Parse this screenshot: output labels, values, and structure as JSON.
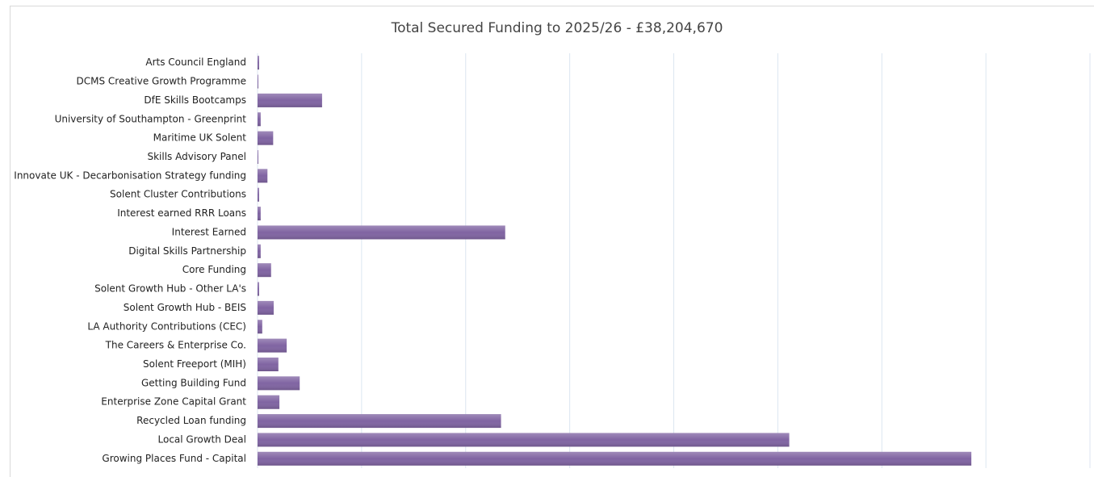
{
  "chart_data": {
    "type": "hbar",
    "title": "Total Secured Funding to 2025/26 - £38,204,670",
    "categories": [
      "Arts Council England",
      "DCMS Creative Growth Programme",
      "DfE Skills Bootcamps",
      "University of Southampton - Greenprint",
      "Maritime UK Solent",
      "Skills Advisory Panel",
      "Innovate UK - Decarbonisation Strategy funding",
      "Solent Cluster Contributions",
      "Interest earned RRR Loans",
      "Interest Earned",
      "Digital Skills Partnership",
      "Core Funding",
      "Solent Growth Hub - Other LA's",
      "Solent Growth Hub - BEIS",
      "LA Authority Contributions (CEC)",
      "The Careers & Enterprise Co.",
      "Solent Freeport (MIH)",
      "Getting Building Fund",
      "Enterprise Zone Capital Grant",
      "Recycled Loan funding",
      "Local Growth Deal",
      "Growing Places Fund - Capital"
    ],
    "values": [
      30000,
      15000,
      1240000,
      60000,
      300000,
      15000,
      190000,
      30000,
      60000,
      4760000,
      60000,
      260000,
      30000,
      310000,
      90000,
      560000,
      400000,
      810000,
      420000,
      4680000,
      10220000,
      13720000
    ],
    "color": "#8064a2",
    "xlim": [
      0,
      16000000
    ],
    "xticks": [
      0,
      2000000,
      4000000,
      6000000,
      8000000,
      10000000,
      12000000,
      14000000,
      16000000
    ],
    "grid": true
  }
}
